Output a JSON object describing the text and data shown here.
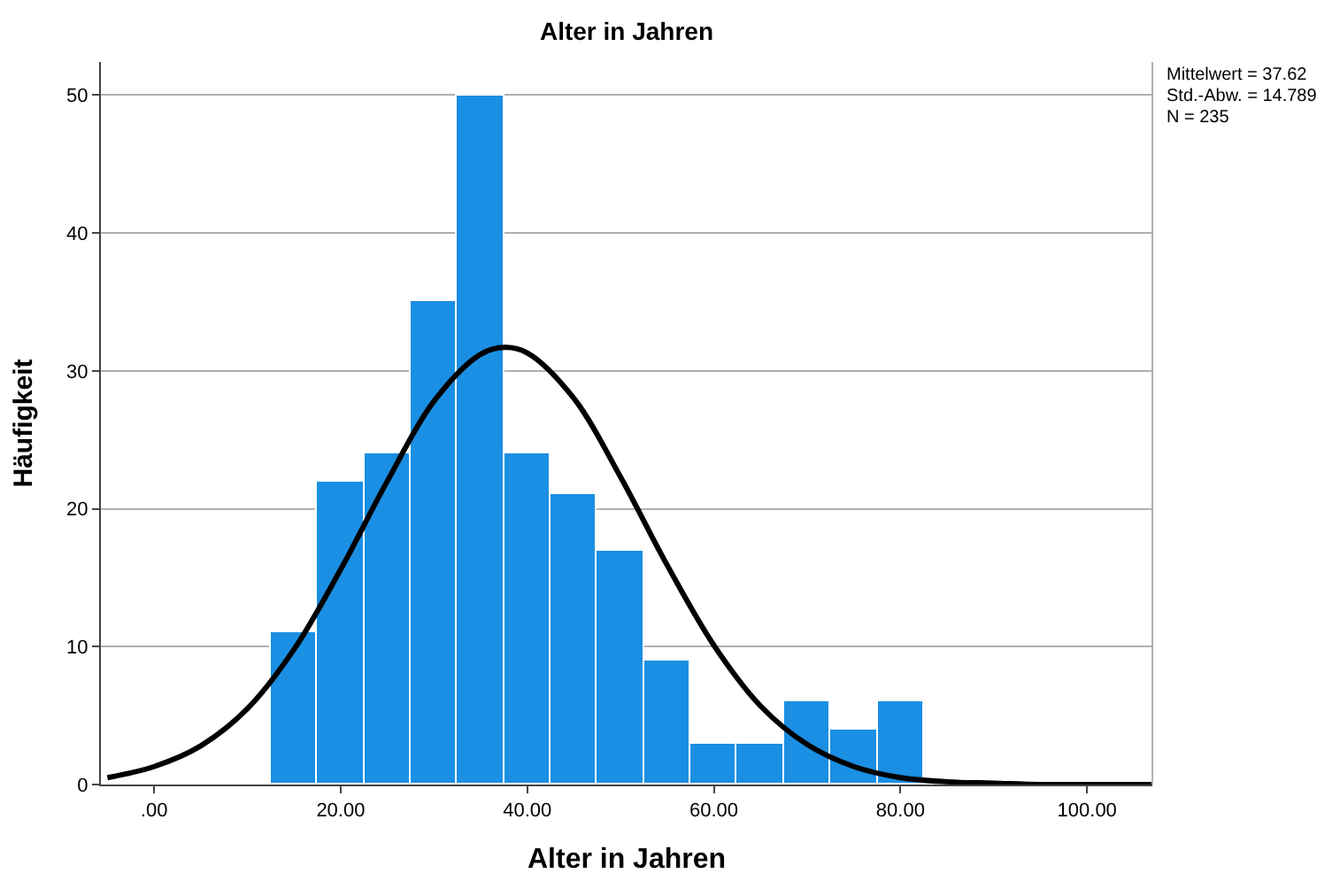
{
  "chart_data": {
    "type": "histogram",
    "title": "Alter in Jahren",
    "xlabel": "Alter in Jahren",
    "ylabel": "Häufigkeit",
    "series": [
      {
        "color": "#1a8fe3",
        "bins": [
          12.5,
          17.5,
          22.5,
          27.5,
          32.5,
          37.5,
          42.5,
          47.5,
          52.5,
          57.5,
          62.5,
          67.5,
          72.5,
          77.5,
          82.5
        ],
        "values": [
          11,
          22,
          24,
          35,
          50,
          24,
          21,
          17,
          9,
          3,
          3,
          6,
          4,
          6
        ]
      },
      {
        "type": "line",
        "color": "#000000",
        "x": [
          -5,
          0,
          5,
          10,
          15,
          20,
          25,
          30,
          35,
          37.6,
          40,
          45,
          50,
          55,
          60,
          65,
          70,
          75,
          80,
          85,
          90,
          95,
          100,
          107
        ],
        "values": [
          0.5,
          1.3,
          2.8,
          5.5,
          9.8,
          15.6,
          22.0,
          27.8,
          31.2,
          31.7,
          31.3,
          28.0,
          22.3,
          15.9,
          10.1,
          5.7,
          2.9,
          1.3,
          0.5,
          0.2,
          0.1,
          0,
          0,
          0
        ]
      }
    ],
    "xlim": [
      -5.7,
      107
    ],
    "xticks": [
      {
        "value": 0,
        "label": ".00"
      },
      {
        "value": 20,
        "label": "20.00"
      },
      {
        "value": 40,
        "label": "40.00"
      },
      {
        "value": 60,
        "label": "60.00"
      },
      {
        "value": 80,
        "label": "80.00"
      },
      {
        "value": 100,
        "label": "100.00"
      }
    ],
    "ylim": [
      0,
      52.4
    ],
    "yticks": [
      0,
      10,
      20,
      30,
      40,
      50
    ],
    "grid": "y",
    "annotations": [
      "Mittelwert = 37.62",
      "Std.-Abw. = 14.789",
      "N = 235"
    ]
  }
}
